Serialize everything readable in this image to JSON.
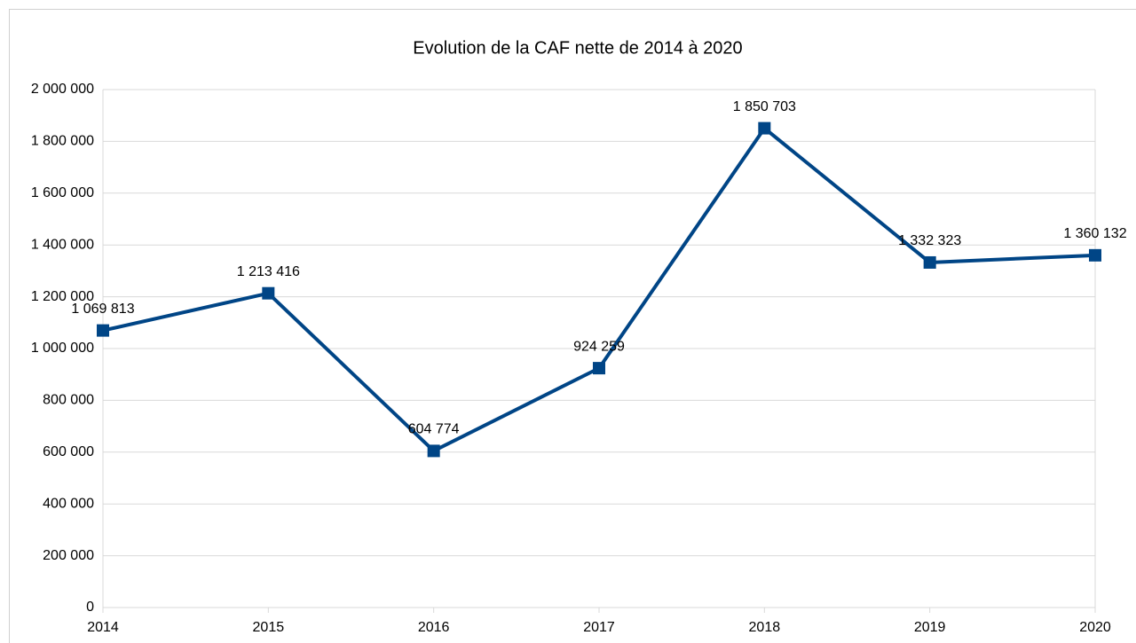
{
  "chart_data": {
    "type": "line",
    "title": "Evolution de la CAF nette de 2014 à 2020",
    "categories": [
      "2014",
      "2015",
      "2016",
      "2017",
      "2018",
      "2019",
      "2020"
    ],
    "series": [
      {
        "color": "#004586",
        "values": [
          1069813,
          1213416,
          604774,
          924259,
          1850703,
          1332323,
          1360132
        ],
        "value_labels": [
          "1 069 813",
          "1 213 416",
          "604 774",
          "924 259",
          "1 850 703",
          "1 332 323",
          "1 360 132"
        ]
      }
    ],
    "ylim": [
      0,
      2000000
    ],
    "yticks": [
      0,
      {
        "value": 200000,
        "label": "200 000"
      },
      {
        "value": 400000,
        "label": "400 000"
      },
      {
        "value": 600000,
        "label": "600 000"
      },
      {
        "value": 800000,
        "label": "800 000"
      },
      {
        "value": 1000000,
        "label": "1 000 000"
      },
      {
        "value": 1200000,
        "label": "1 200 000"
      },
      {
        "value": 1400000,
        "label": "1 400 000"
      },
      {
        "value": 1600000,
        "label": "1 600 000"
      },
      {
        "value": 1800000,
        "label": "1 800 000"
      },
      {
        "value": 2000000,
        "label": "2 000 000"
      }
    ],
    "grid": true
  }
}
